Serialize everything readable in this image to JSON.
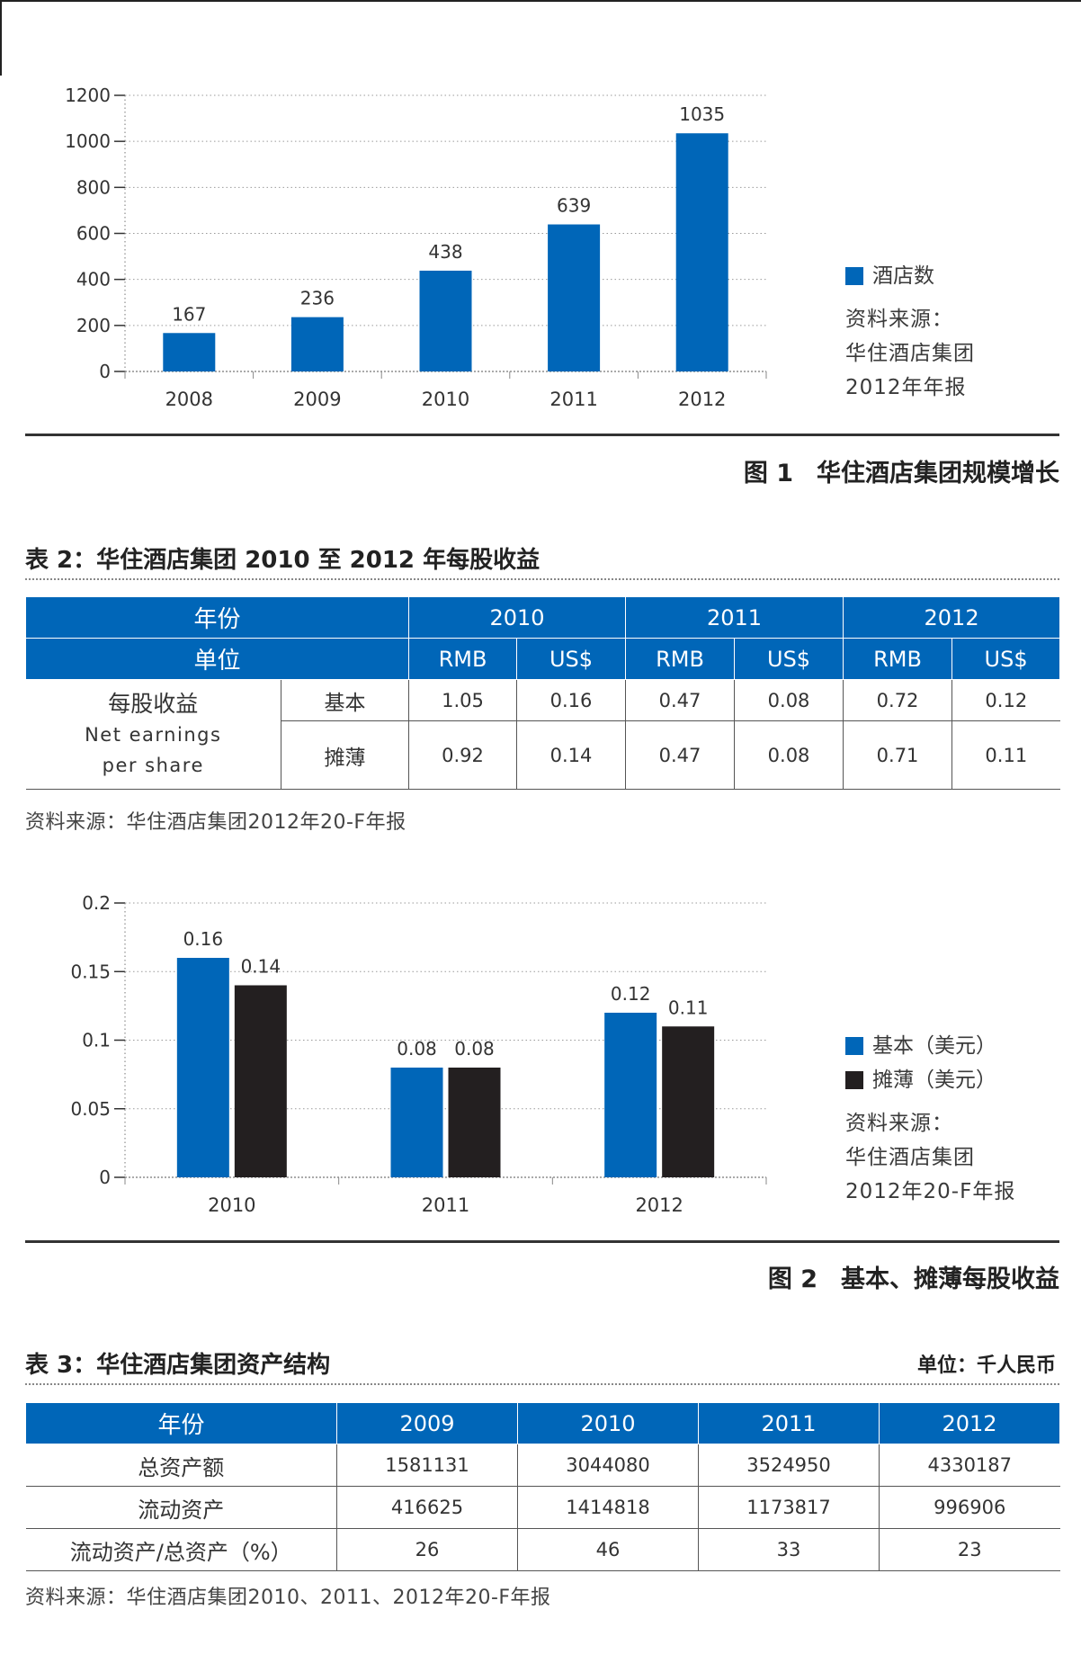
{
  "figure1": {
    "caption_num": "图 1",
    "caption_text": "华住酒店集团规模增长",
    "legend_label": "酒店数",
    "source_lines": [
      "资料来源：",
      "华住酒店集团",
      "2012年年报"
    ],
    "colors": {
      "bar": "#0066b8"
    }
  },
  "table2": {
    "title": "表 2：华住酒店集团 2010 至 2012 年每股收益",
    "header_year_label": "年份",
    "header_unit_label": "单位",
    "years": [
      "2010",
      "2011",
      "2012"
    ],
    "currencies": [
      "RMB",
      "US$",
      "RMB",
      "US$",
      "RMB",
      "US$"
    ],
    "row_label_cn": "每股收益",
    "row_label_en": "Net earnings per share",
    "rows": [
      {
        "type": "基本",
        "values": [
          "1.05",
          "0.16",
          "0.47",
          "0.08",
          "0.72",
          "0.12"
        ]
      },
      {
        "type": "摊薄",
        "values": [
          "0.92",
          "0.14",
          "0.47",
          "0.08",
          "0.71",
          "0.11"
        ]
      }
    ],
    "source": "资料来源：华住酒店集团2012年20-F年报"
  },
  "figure2": {
    "caption_num": "图 2",
    "caption_text": "基本、摊薄每股收益",
    "legend": [
      {
        "label": "基本（美元）",
        "color": "#0066b8"
      },
      {
        "label": "摊薄（美元）",
        "color": "#231f20"
      }
    ],
    "source_lines": [
      "资料来源：",
      "华住酒店集团",
      "2012年20-F年报"
    ]
  },
  "table3": {
    "title": "表 3：华住酒店集团资产结构",
    "unit": "单位：千人民币",
    "header_label": "年份",
    "years": [
      "2009",
      "2010",
      "2011",
      "2012"
    ],
    "rows": [
      {
        "label": "总资产额",
        "values": [
          "1581131",
          "3044080",
          "3524950",
          "4330187"
        ]
      },
      {
        "label": "流动资产",
        "values": [
          "416625",
          "1414818",
          "1173817",
          "996906"
        ]
      },
      {
        "label": "流动资产/总资产（%）",
        "values": [
          "26",
          "46",
          "33",
          "23"
        ]
      }
    ],
    "source": "资料来源：华住酒店集团2010、2011、2012年20-F年报"
  },
  "chart_data": [
    {
      "type": "bar",
      "categories": [
        "2008",
        "2009",
        "2010",
        "2011",
        "2012"
      ],
      "series": [
        {
          "name": "酒店数",
          "values": [
            167,
            236,
            438,
            639,
            1035
          ]
        }
      ],
      "ylim": [
        0,
        1200
      ],
      "yticks": [
        0,
        200,
        400,
        600,
        800,
        1000,
        1200
      ],
      "ytick_labels": [
        "0",
        "200",
        "400",
        "600",
        "800",
        "1000",
        "1200"
      ],
      "data_labels": [
        "167",
        "236",
        "438",
        "639",
        "1035"
      ],
      "grid": true,
      "legend_position": "right"
    },
    {
      "type": "bar",
      "categories": [
        "2010",
        "2011",
        "2012"
      ],
      "series": [
        {
          "name": "基本（美元）",
          "values": [
            0.16,
            0.08,
            0.12
          ]
        },
        {
          "name": "摊薄（美元）",
          "values": [
            0.14,
            0.08,
            0.11
          ]
        }
      ],
      "ylim": [
        0,
        0.2
      ],
      "yticks": [
        0,
        0.05,
        0.1,
        0.15,
        0.2
      ],
      "ytick_labels": [
        "0",
        "0.05",
        "0.1",
        "0.15",
        "0.2"
      ],
      "data_labels": [
        [
          "0.16",
          "0.08",
          "0.12"
        ],
        [
          "0.14",
          "0.08",
          "0.11"
        ]
      ],
      "grid": true,
      "legend_position": "right"
    }
  ]
}
